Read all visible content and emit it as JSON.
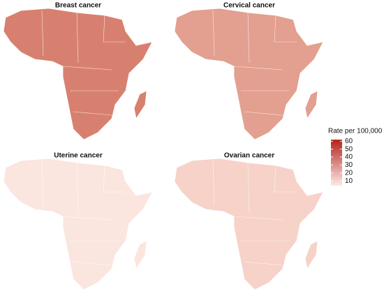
{
  "panels": [
    {
      "title": "Breast cancer",
      "color": "#d8806f"
    },
    {
      "title": "Cervical cancer",
      "color": "#e39f90"
    },
    {
      "title": "Uterine cancer",
      "color": "#fbe5df"
    },
    {
      "title": "Ovarian cancer",
      "color": "#f6d2c8"
    }
  ],
  "legend": {
    "title": "Rate per 100,000",
    "ticks": [
      10,
      20,
      30,
      40,
      50,
      60
    ],
    "lim": [
      4,
      62
    ],
    "colors": [
      "#fde9e4",
      "#b2241c"
    ]
  }
}
